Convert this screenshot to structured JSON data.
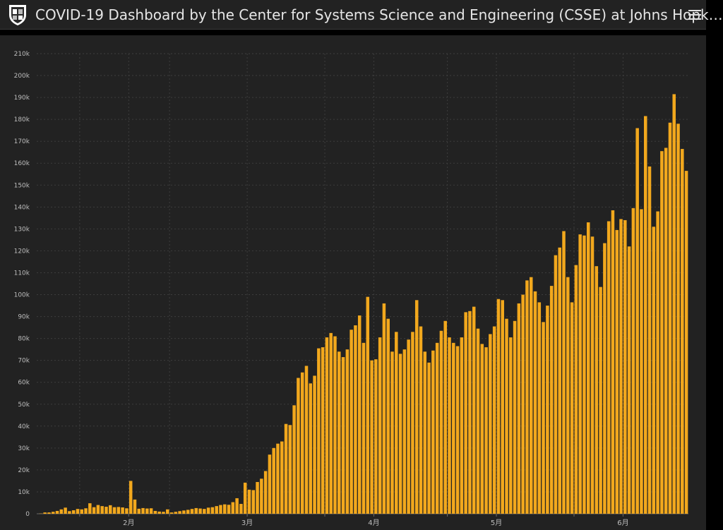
{
  "header": {
    "title": "COVID-19 Dashboard by the Center for Systems Science and Engineering (CSSE) at Johns Hopk…",
    "logo_icon": "university-shield-icon",
    "menu_icon": "hamburger-menu-icon"
  },
  "colors": {
    "bar": "#f2a81d",
    "background": "#222222",
    "grid": "#3d3d3d",
    "text": "#e6e6e6"
  },
  "chart_data": {
    "type": "bar",
    "title": "",
    "xlabel": "",
    "ylabel": "",
    "ylim": [
      0,
      210000
    ],
    "y_ticks": [
      {
        "value": 0,
        "label": "0"
      },
      {
        "value": 10000,
        "label": "10k"
      },
      {
        "value": 20000,
        "label": "20k"
      },
      {
        "value": 30000,
        "label": "30k"
      },
      {
        "value": 40000,
        "label": "40k"
      },
      {
        "value": 50000,
        "label": "50k"
      },
      {
        "value": 60000,
        "label": "60k"
      },
      {
        "value": 70000,
        "label": "70k"
      },
      {
        "value": 80000,
        "label": "80k"
      },
      {
        "value": 90000,
        "label": "90k"
      },
      {
        "value": 100000,
        "label": "100k"
      },
      {
        "value": 110000,
        "label": "110k"
      },
      {
        "value": 120000,
        "label": "120k"
      },
      {
        "value": 130000,
        "label": "130k"
      },
      {
        "value": 140000,
        "label": "140k"
      },
      {
        "value": 150000,
        "label": "150k"
      },
      {
        "value": 160000,
        "label": "160k"
      },
      {
        "value": 170000,
        "label": "170k"
      },
      {
        "value": 180000,
        "label": "180k"
      },
      {
        "value": 190000,
        "label": "190k"
      },
      {
        "value": 200000,
        "label": "200k"
      },
      {
        "value": 210000,
        "label": "210k"
      }
    ],
    "x_ticks": [
      {
        "index": 10,
        "label": ""
      },
      {
        "index": 22,
        "label": "2月"
      },
      {
        "index": 32,
        "label": ""
      },
      {
        "index": 51,
        "label": "3月"
      },
      {
        "index": 70,
        "label": ""
      },
      {
        "index": 82,
        "label": "4月"
      },
      {
        "index": 100,
        "label": ""
      },
      {
        "index": 112,
        "label": "5月"
      },
      {
        "index": 131,
        "label": ""
      },
      {
        "index": 143,
        "label": "6月"
      }
    ],
    "grid": true,
    "series": [
      {
        "values": [
          100,
          600,
          600,
          900,
          1300,
          2000,
          2800,
          1200,
          1600,
          2200,
          2000,
          2500,
          4800,
          3000,
          4000,
          3500,
          3200,
          3900,
          3000,
          3100,
          2900,
          2500,
          15000,
          6500,
          2300,
          2600,
          2400,
          2500,
          1300,
          1000,
          900,
          2000,
          600,
          900,
          1200,
          1500,
          1800,
          2200,
          2600,
          2400,
          2200,
          2800,
          3000,
          3500,
          4000,
          4300,
          4100,
          5300,
          7100,
          4500,
          14200,
          11000,
          10800,
          14500,
          16000,
          19500,
          27000,
          30000,
          32000,
          33000,
          41000,
          40500,
          49500,
          62000,
          64500,
          67500,
          59500,
          63000,
          75500,
          76000,
          80500,
          82500,
          81000,
          74000,
          71500,
          75000,
          84000,
          86000,
          90500,
          78000,
          99000,
          70000,
          70500,
          80500,
          96000,
          89000,
          74000,
          83000,
          73000,
          75000,
          79500,
          83000,
          97500,
          85500,
          74000,
          69000,
          74500,
          78000,
          83500,
          88000,
          80500,
          78000,
          76500,
          80500,
          92000,
          92500,
          94500,
          84500,
          77500,
          76000,
          82000,
          85500,
          98000,
          97500,
          89000,
          80500,
          88000,
          96000,
          100000,
          106500,
          108000,
          101500,
          96500,
          87500,
          95000,
          104000,
          118000,
          121500,
          129000,
          108000,
          96500,
          113500,
          127500,
          127000,
          133000,
          126500,
          113000,
          103500,
          123500,
          133500,
          138500,
          129500,
          134500,
          134000,
          122000,
          139500,
          176000,
          139000,
          181500,
          158500,
          131000,
          138000,
          165500,
          167000,
          178500,
          191500,
          178000,
          166500,
          156500
        ]
      }
    ]
  }
}
